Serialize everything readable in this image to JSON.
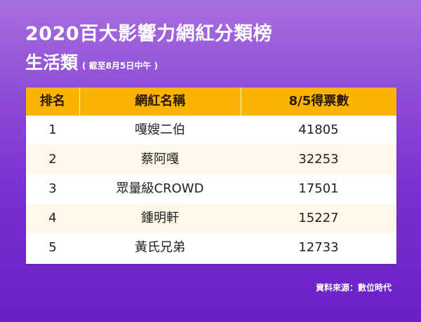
{
  "title": "2020百大影響力網紅分類榜",
  "subtitle": "生活類",
  "note": "( 截至8月5日中午 )",
  "table": {
    "headers": [
      "排名",
      "網紅名稱",
      "8/5得票數"
    ],
    "rows": [
      {
        "rank": "1",
        "name": "嘎嫂二伯",
        "votes": "41805"
      },
      {
        "rank": "2",
        "name": "蔡阿嘎",
        "votes": "32253"
      },
      {
        "rank": "3",
        "name": "眾量級CROWD",
        "votes": "17501"
      },
      {
        "rank": "4",
        "name": "鍾明軒",
        "votes": "15227"
      },
      {
        "rank": "5",
        "name": "黃氏兄弟",
        "votes": "12733"
      }
    ]
  },
  "source": "資料來源：數位時代",
  "colors": {
    "header_bg": "#f8b400",
    "row_alt_bg": "#fff7e8",
    "background_top": "#a86fe0",
    "background_bottom": "#6b1fc8"
  }
}
